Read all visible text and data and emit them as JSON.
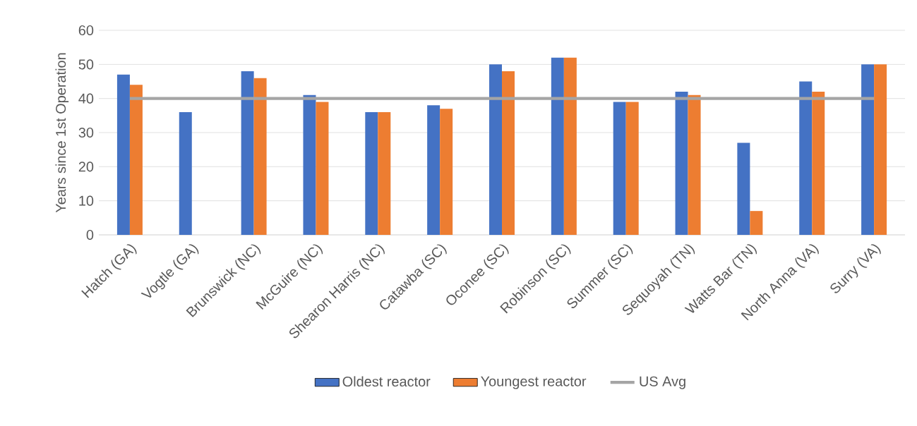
{
  "chart_data": {
    "type": "bar",
    "ylabel": "Years since 1st Operation",
    "categories": [
      "Hatch (GA)",
      "Vogtle (GA)",
      "Brunswick (NC)",
      "McGuire (NC)",
      "Shearon Harris (NC)",
      "Catawba (SC)",
      "Oconee (SC)",
      "Robinson (SC)",
      "Summer (SC)",
      "Sequoyah (TN)",
      "Watts Bar (TN)",
      "North Anna (VA)",
      "Surry (VA)"
    ],
    "series": [
      {
        "name": "Oldest reactor",
        "color": "#4472c4",
        "values": [
          47,
          36,
          48,
          41,
          36,
          38,
          50,
          52,
          39,
          42,
          27,
          45,
          50
        ]
      },
      {
        "name": "Youngest reactor",
        "color": "#ed7d31",
        "values": [
          44,
          null,
          46,
          39,
          36,
          37,
          48,
          52,
          39,
          41,
          7,
          42,
          50
        ]
      },
      {
        "name": "US Avg",
        "type": "line",
        "color": "#a5a5a5",
        "values": [
          40,
          40,
          40,
          40,
          40,
          40,
          40,
          40,
          40,
          40,
          40,
          40,
          40
        ]
      }
    ],
    "ylim": [
      0,
      60
    ],
    "yticks": [
      0,
      10,
      20,
      30,
      40,
      50,
      60
    ],
    "grid": "y",
    "legend": "bottom"
  }
}
